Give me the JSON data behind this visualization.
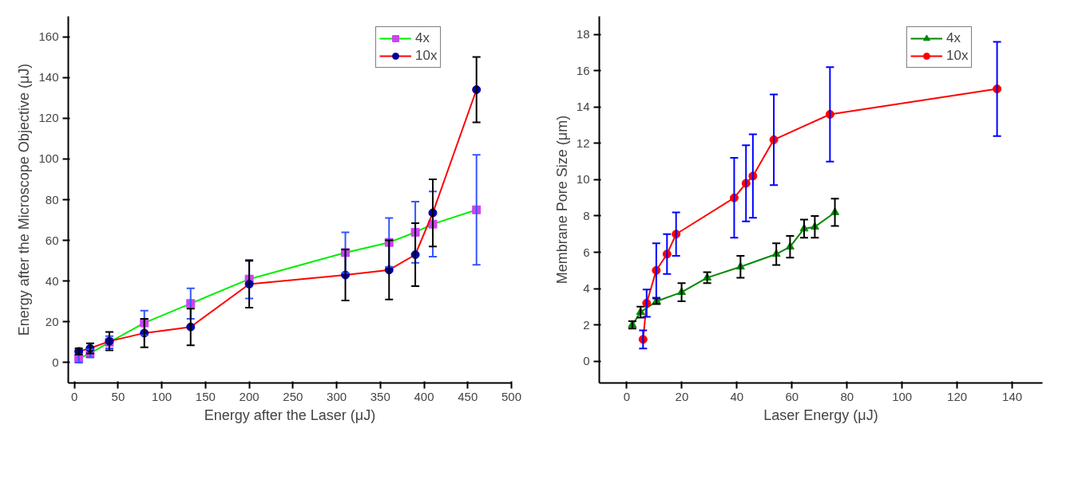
{
  "chart_data": [
    {
      "type": "line",
      "xlabel": "Energy after the Laser (μJ)",
      "ylabel": "Energy after the Microscope Objective (μJ)",
      "x": [
        5,
        18,
        40,
        80,
        133,
        200,
        310,
        360,
        390,
        410,
        460
      ],
      "xlim": [
        -7,
        500
      ],
      "ylim": [
        -10,
        170
      ],
      "xticks": [
        0,
        50,
        100,
        150,
        200,
        250,
        300,
        350,
        400,
        450,
        500
      ],
      "yticks": [
        0,
        20,
        40,
        60,
        80,
        100,
        120,
        140,
        160
      ],
      "grid": false,
      "legend": "top right",
      "series": [
        {
          "name": "4x",
          "color": "#00ee00",
          "marker": "square",
          "values": [
            2,
            4.5,
            10,
            19.5,
            29,
            41,
            54,
            59,
            64,
            68,
            75
          ],
          "errors": [
            2,
            2,
            3,
            6,
            7.5,
            9.5,
            10,
            12,
            15,
            16,
            27
          ]
        },
        {
          "name": "10x",
          "color": "#ff0000",
          "marker": "circle",
          "values": [
            5.5,
            7,
            10.5,
            14.5,
            17.5,
            38.5,
            43,
            45.5,
            53,
            73.5,
            134
          ],
          "errors": [
            1.5,
            2.5,
            4.5,
            7,
            9,
            11.5,
            12.5,
            14.5,
            15.5,
            16.5,
            16
          ]
        }
      ]
    },
    {
      "type": "line",
      "xlabel": "Laser Energy (μJ)",
      "ylabel": "Membrane Pore Size (μm)",
      "xlim": [
        -10,
        151
      ],
      "ylim": [
        -1.2,
        19
      ],
      "xticks": [
        0,
        20,
        40,
        60,
        80,
        100,
        120,
        140
      ],
      "yticks": [
        0,
        2,
        4,
        6,
        8,
        10,
        12,
        14,
        16,
        18
      ],
      "grid": false,
      "legend": "top right",
      "series": [
        {
          "name": "4x",
          "color": "#008800",
          "marker": "triangle",
          "x": [
            2,
            5,
            10.8,
            19.9,
            29.2,
            41.3,
            54.3,
            59.3,
            64.4,
            68.3,
            75.6
          ],
          "values": [
            2.0,
            2.7,
            3.3,
            3.8,
            4.6,
            5.2,
            5.9,
            6.3,
            7.3,
            7.4,
            8.2
          ],
          "errors": [
            0.2,
            0.3,
            0.15,
            0.5,
            0.3,
            0.6,
            0.6,
            0.6,
            0.5,
            0.6,
            0.75
          ]
        },
        {
          "name": "10x",
          "color": "#ff0000",
          "marker": "circle",
          "x": [
            5.9,
            7.2,
            10.7,
            14.6,
            17.9,
            39,
            43.3,
            45.8,
            53.4,
            73.8,
            134.5
          ],
          "values": [
            1.2,
            3.2,
            5.0,
            5.9,
            7.0,
            9.0,
            9.8,
            10.2,
            12.2,
            13.6,
            15.0
          ],
          "errors": [
            0.5,
            0.75,
            1.5,
            1.1,
            1.2,
            2.2,
            2.1,
            2.3,
            2.5,
            2.6,
            2.6
          ]
        }
      ]
    }
  ]
}
